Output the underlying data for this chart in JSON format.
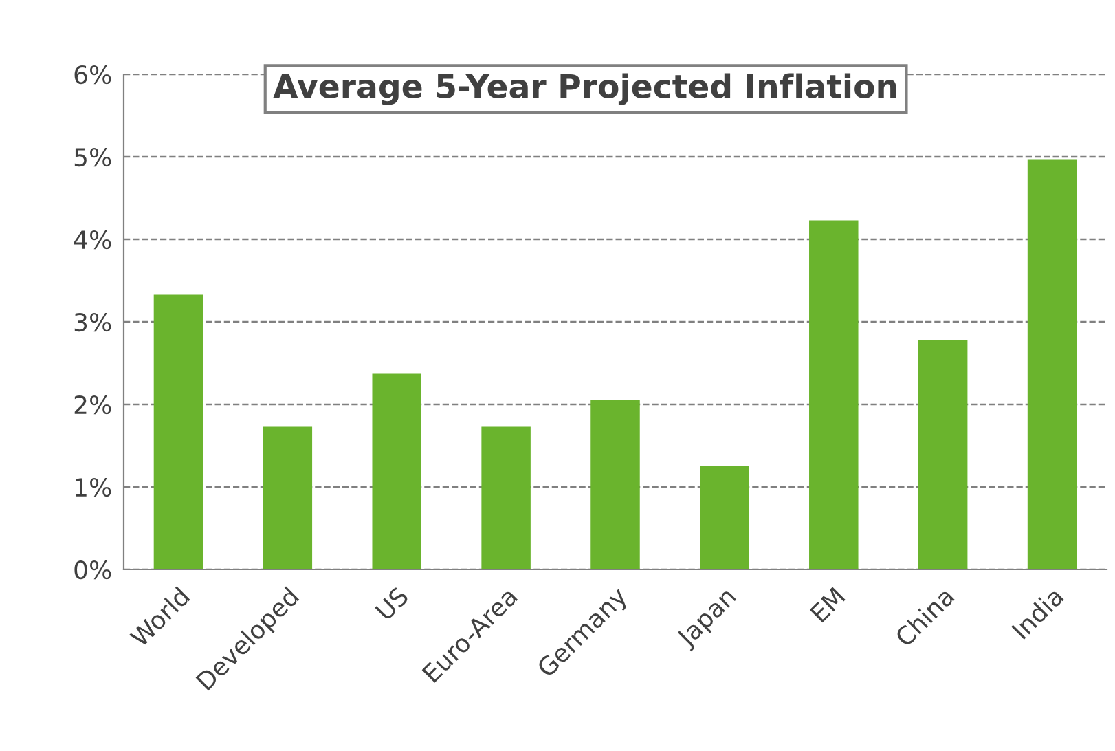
{
  "chart_data": {
    "type": "bar",
    "title": "Average 5-Year Projected Inflation",
    "categories": [
      "World",
      "Developed",
      "US",
      "Euro-Area",
      "Germany",
      "Japan",
      "EM",
      "China",
      "India"
    ],
    "values": [
      3.33,
      1.73,
      2.37,
      1.73,
      2.05,
      1.25,
      4.23,
      2.78,
      4.97
    ],
    "color": "#6ab42d",
    "ylim": [
      0,
      6
    ],
    "yticks": [
      {
        "value": 0,
        "label": "0%"
      },
      {
        "value": 1,
        "label": "1%"
      },
      {
        "value": 2,
        "label": "2%"
      },
      {
        "value": 3,
        "label": "3%"
      },
      {
        "value": 4,
        "label": "4%"
      },
      {
        "value": 5,
        "label": "5%"
      },
      {
        "value": 6,
        "label": "6%"
      }
    ],
    "grid": "y"
  }
}
